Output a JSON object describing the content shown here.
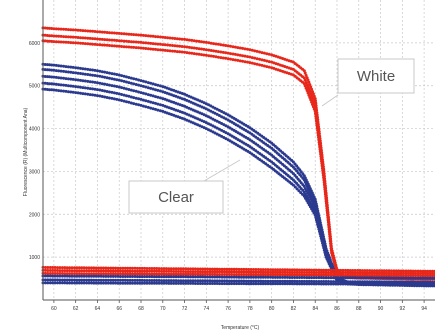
{
  "chart_data": {
    "type": "scatter",
    "title": "",
    "xlabel": "Temperature (°C)",
    "ylabel": "Fluorescence (R) (Multicomponent Ana)",
    "xlim": [
      59,
      95
    ],
    "ylim": [
      0,
      7000
    ],
    "x_ticks": [
      60,
      62,
      64,
      66,
      68,
      70,
      72,
      74,
      76,
      78,
      80,
      82,
      84,
      86,
      88,
      90,
      92,
      94
    ],
    "y_ticks": [
      1000,
      2000,
      3000,
      4000,
      5000,
      6000
    ],
    "grid": true,
    "annotations": [
      {
        "text": "White",
        "target_series": "white-melt-high"
      },
      {
        "text": "Clear",
        "target_series": "clear-melt-high"
      }
    ],
    "series": [
      {
        "id": "white-melt-high",
        "color": "#e8271b",
        "x": [
          59,
          60,
          62,
          64,
          66,
          68,
          70,
          72,
          74,
          76,
          78,
          80,
          82,
          83,
          84,
          84.8,
          85.5,
          86,
          86.5,
          87,
          88,
          90,
          92,
          94,
          95
        ],
        "y": [
          6350,
          6330,
          6300,
          6260,
          6220,
          6180,
          6130,
          6080,
          6010,
          5930,
          5840,
          5720,
          5550,
          5350,
          4700,
          3000,
          1200,
          700,
          560,
          540,
          530,
          520,
          510,
          500,
          500
        ]
      },
      {
        "id": "white-melt-mid",
        "color": "#e8271b",
        "x": [
          59,
          60,
          62,
          64,
          66,
          68,
          70,
          72,
          74,
          76,
          78,
          80,
          82,
          83,
          84,
          84.8,
          85.5,
          86,
          86.5,
          87,
          88,
          90,
          92,
          94,
          95
        ],
        "y": [
          6180,
          6160,
          6130,
          6090,
          6050,
          6010,
          5960,
          5910,
          5840,
          5760,
          5670,
          5550,
          5380,
          5180,
          4550,
          2900,
          1150,
          680,
          550,
          530,
          520,
          510,
          500,
          490,
          490
        ]
      },
      {
        "id": "white-melt-low",
        "color": "#e8271b",
        "x": [
          59,
          60,
          62,
          64,
          66,
          68,
          70,
          72,
          74,
          76,
          78,
          80,
          82,
          83,
          84,
          84.8,
          85.5,
          86,
          86.5,
          87,
          88,
          90,
          92,
          94,
          95
        ],
        "y": [
          6050,
          6030,
          6000,
          5960,
          5920,
          5880,
          5830,
          5780,
          5710,
          5630,
          5540,
          5420,
          5250,
          5050,
          4400,
          2800,
          1100,
          660,
          540,
          520,
          510,
          500,
          490,
          480,
          480
        ]
      },
      {
        "id": "clear-melt-high",
        "color": "#2b3a8f",
        "x": [
          59,
          60,
          62,
          64,
          66,
          68,
          70,
          72,
          74,
          76,
          78,
          80,
          82,
          83,
          84,
          85,
          86,
          87,
          88,
          90,
          92,
          94,
          95
        ],
        "y": [
          5500,
          5480,
          5420,
          5350,
          5250,
          5120,
          4980,
          4800,
          4580,
          4320,
          4020,
          3660,
          3220,
          2900,
          2350,
          1200,
          520,
          420,
          400,
          390,
          380,
          370,
          370
        ]
      },
      {
        "id": "clear-melt-2",
        "color": "#2b3a8f",
        "x": [
          59,
          60,
          62,
          64,
          66,
          68,
          70,
          72,
          74,
          76,
          78,
          80,
          82,
          83,
          84,
          85,
          86,
          87,
          88,
          90,
          92,
          94,
          95
        ],
        "y": [
          5380,
          5360,
          5300,
          5230,
          5130,
          5000,
          4860,
          4680,
          4460,
          4200,
          3900,
          3540,
          3100,
          2800,
          2250,
          1150,
          500,
          410,
          390,
          380,
          370,
          360,
          360
        ]
      },
      {
        "id": "clear-melt-3",
        "color": "#2b3a8f",
        "x": [
          59,
          60,
          62,
          64,
          66,
          68,
          70,
          72,
          74,
          76,
          78,
          80,
          82,
          83,
          84,
          85,
          86,
          87,
          88,
          90,
          92,
          94,
          95
        ],
        "y": [
          5220,
          5200,
          5140,
          5070,
          4970,
          4840,
          4700,
          4520,
          4300,
          4040,
          3740,
          3380,
          2950,
          2650,
          2150,
          1100,
          480,
          400,
          380,
          370,
          360,
          350,
          350
        ]
      },
      {
        "id": "clear-melt-4",
        "color": "#2b3a8f",
        "x": [
          59,
          60,
          62,
          64,
          66,
          68,
          70,
          72,
          74,
          76,
          78,
          80,
          82,
          83,
          84,
          85,
          86,
          87,
          88,
          90,
          92,
          94,
          95
        ],
        "y": [
          5060,
          5040,
          4980,
          4910,
          4810,
          4680,
          4540,
          4360,
          4140,
          3880,
          3580,
          3220,
          2800,
          2520,
          2050,
          1050,
          460,
          390,
          370,
          360,
          350,
          340,
          340
        ]
      },
      {
        "id": "clear-melt-5",
        "color": "#2b3a8f",
        "x": [
          59,
          60,
          62,
          64,
          66,
          68,
          70,
          72,
          74,
          76,
          78,
          80,
          82,
          83,
          84,
          85,
          86,
          87,
          88,
          90,
          92,
          94,
          95
        ],
        "y": [
          4920,
          4900,
          4840,
          4770,
          4670,
          4540,
          4400,
          4220,
          4000,
          3740,
          3440,
          3080,
          2680,
          2420,
          1980,
          1000,
          450,
          380,
          360,
          350,
          340,
          330,
          330
        ]
      },
      {
        "id": "white-baseline-1",
        "color": "#e8271b",
        "x": [
          59,
          61,
          63,
          65,
          67,
          69,
          71,
          73,
          75,
          77,
          79,
          81,
          83,
          85,
          87,
          89,
          91,
          93,
          95
        ],
        "y": [
          760,
          755,
          750,
          745,
          740,
          735,
          730,
          725,
          720,
          715,
          710,
          705,
          700,
          695,
          690,
          685,
          680,
          675,
          670
        ]
      },
      {
        "id": "white-baseline-2",
        "color": "#e8271b",
        "x": [
          59,
          61,
          63,
          65,
          67,
          69,
          71,
          73,
          75,
          77,
          79,
          81,
          83,
          85,
          87,
          89,
          91,
          93,
          95
        ],
        "y": [
          690,
          686,
          682,
          678,
          674,
          670,
          666,
          662,
          658,
          654,
          650,
          646,
          642,
          638,
          634,
          630,
          626,
          622,
          618
        ]
      },
      {
        "id": "white-baseline-3",
        "color": "#e8271b",
        "x": [
          59,
          61,
          63,
          65,
          67,
          69,
          71,
          73,
          75,
          77,
          79,
          81,
          83,
          85,
          87,
          89,
          91,
          93,
          95
        ],
        "y": [
          620,
          617,
          614,
          611,
          608,
          605,
          602,
          599,
          596,
          593,
          590,
          587,
          584,
          581,
          578,
          575,
          572,
          569,
          566
        ]
      },
      {
        "id": "clear-baseline-1",
        "color": "#2b3a8f",
        "x": [
          59,
          61,
          63,
          65,
          67,
          69,
          71,
          73,
          75,
          77,
          79,
          81,
          83,
          85,
          87,
          89,
          91,
          93,
          95
        ],
        "y": [
          560,
          557,
          554,
          551,
          548,
          545,
          542,
          539,
          536,
          533,
          530,
          527,
          524,
          521,
          518,
          515,
          512,
          509,
          506
        ]
      },
      {
        "id": "clear-baseline-2",
        "color": "#2b3a8f",
        "x": [
          59,
          61,
          63,
          65,
          67,
          69,
          71,
          73,
          75,
          77,
          79,
          81,
          83,
          85,
          87,
          89,
          91,
          93,
          95
        ],
        "y": [
          470,
          467,
          464,
          461,
          458,
          455,
          452,
          449,
          446,
          443,
          440,
          437,
          434,
          431,
          428,
          425,
          422,
          419,
          416
        ]
      },
      {
        "id": "clear-baseline-3",
        "color": "#2b3a8f",
        "x": [
          59,
          61,
          63,
          65,
          67,
          69,
          71,
          73,
          75,
          77,
          79,
          81,
          83,
          85,
          87,
          89,
          91,
          93,
          95
        ],
        "y": [
          400,
          398,
          396,
          394,
          392,
          390,
          388,
          386,
          384,
          382,
          380,
          378,
          376,
          374,
          372,
          370,
          368,
          366,
          364
        ]
      }
    ]
  }
}
